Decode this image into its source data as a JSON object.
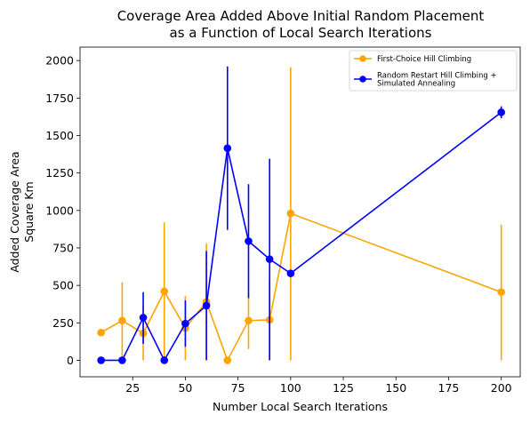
{
  "chart_data": {
    "type": "line",
    "title": [
      "Coverage Area Added Above Initial Random Placement",
      "as a Function of Local Search Iterations"
    ],
    "xlabel": "Number Local Search Iterations",
    "ylabel": [
      "Added Coverage Area",
      "Square Km"
    ],
    "xlim": [
      0,
      209
    ],
    "ylim": [
      -110,
      2090
    ],
    "x_ticks": [
      25,
      50,
      75,
      100,
      125,
      150,
      175,
      200
    ],
    "y_ticks": [
      0,
      250,
      500,
      750,
      1000,
      1250,
      1500,
      1750,
      2000
    ],
    "grid": false,
    "legend_position": "top-right",
    "series": [
      {
        "name": "First-Choice Hill Climbing",
        "color": "#ffa500",
        "x": [
          10,
          20,
          30,
          40,
          50,
          60,
          70,
          80,
          90,
          100,
          200
        ],
        "y": [
          185,
          265,
          180,
          460,
          215,
          390,
          0,
          265,
          270,
          980,
          455
        ],
        "err_low": [
          185,
          0,
          0,
          0,
          0,
          0,
          0,
          75,
          0,
          0,
          0
        ],
        "err_high": [
          185,
          520,
          360,
          920,
          430,
          780,
          0,
          455,
          540,
          1955,
          905
        ]
      },
      {
        "name": "Random Restart Hill Climbing + Simulated Annealing",
        "legend_lines": [
          "Random Restart Hill Climbing +",
          "Simulated Annealing"
        ],
        "color": "#0000ff",
        "x": [
          10,
          20,
          30,
          40,
          50,
          60,
          70,
          80,
          90,
          100,
          200
        ],
        "y": [
          0,
          0,
          285,
          0,
          245,
          365,
          1415,
          795,
          675,
          580,
          1655
        ],
        "err_low": [
          0,
          0,
          110,
          0,
          90,
          0,
          870,
          415,
          0,
          580,
          1615
        ],
        "err_high": [
          0,
          0,
          455,
          0,
          400,
          730,
          1960,
          1175,
          1345,
          580,
          1695
        ]
      }
    ]
  }
}
